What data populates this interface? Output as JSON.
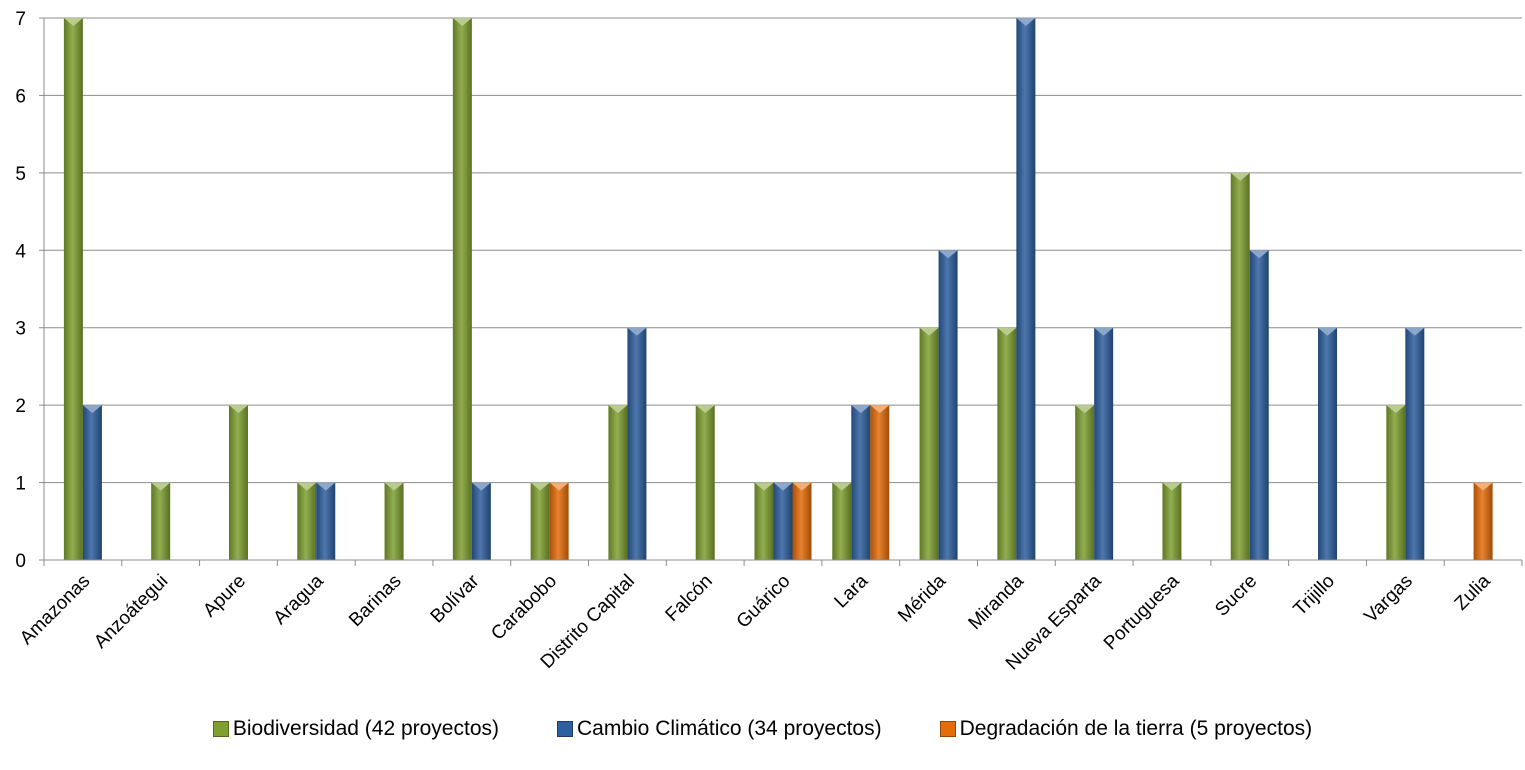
{
  "chart_data": {
    "type": "bar",
    "categories": [
      "Amazonas",
      "Anzoátegui",
      "Apure",
      "Aragua",
      "Barinas",
      "Bolívar",
      "Carabobo",
      "Distrito Capital",
      "Falcón",
      "Guárico",
      "Lara",
      "Mérida",
      "Miranda",
      "Nueva Esparta",
      "Portuguesa",
      "Sucre",
      "Trijillo",
      "Vargas",
      "Zulia"
    ],
    "series": [
      {
        "name": "Biodiversidad (42 proyectos)",
        "color": "#7FA031",
        "values": [
          7,
          1,
          2,
          1,
          1,
          7,
          1,
          2,
          2,
          1,
          1,
          3,
          3,
          2,
          1,
          5,
          0,
          2,
          0
        ]
      },
      {
        "name": "Cambio Climático (34 proyectos)",
        "color": "#2E5F9E",
        "values": [
          2,
          0,
          0,
          1,
          0,
          1,
          0,
          3,
          0,
          1,
          2,
          4,
          7,
          3,
          0,
          4,
          3,
          3,
          0
        ]
      },
      {
        "name": "Degradación de la tierra (5 proyectos)",
        "color": "#E46C0A",
        "values": [
          0,
          0,
          0,
          0,
          0,
          0,
          1,
          0,
          0,
          1,
          2,
          0,
          0,
          0,
          0,
          0,
          0,
          0,
          1
        ]
      }
    ],
    "ylim": [
      0,
      7
    ],
    "yticks": [
      "0",
      "1",
      "2",
      "3",
      "4",
      "5",
      "6",
      "7"
    ],
    "grid": true,
    "legend_position": "bottom",
    "title": "",
    "xlabel": "",
    "ylabel": ""
  }
}
